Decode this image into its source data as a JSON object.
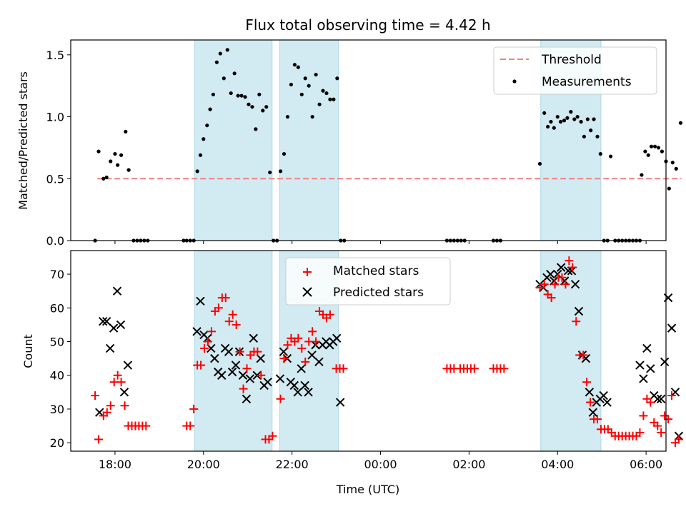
{
  "chart_data": {
    "title": "Flux total observing time = 4.42 h",
    "xlabel": "Time (UTC)",
    "x_range_hours": [
      17.0,
      30.45
    ],
    "x_ticks": [
      {
        "h": 18,
        "label": "18:00"
      },
      {
        "h": 20,
        "label": "20:00"
      },
      {
        "h": 22,
        "label": "22:00"
      },
      {
        "h": 24,
        "label": "00:00"
      },
      {
        "h": 26,
        "label": "02:00"
      },
      {
        "h": 28,
        "label": "04:00"
      },
      {
        "h": 30,
        "label": "06:00"
      }
    ],
    "shaded_intervals_hours": [
      [
        19.8,
        21.55
      ],
      [
        21.72,
        23.05
      ],
      [
        27.62,
        28.98
      ]
    ],
    "shade_color": "#add8e6",
    "top": {
      "type": "scatter",
      "ylabel": "Matched/Predicted stars",
      "ylim": [
        0,
        1.62
      ],
      "y_ticks": [
        0.0,
        0.5,
        1.0,
        1.5
      ],
      "threshold": 0.5,
      "threshold_range_hours": [
        17.6,
        30.8
      ],
      "threshold_color": "#f08080",
      "point_color": "#000000",
      "legend": [
        "Threshold",
        "Measurements"
      ],
      "measurements": [
        [
          17.55,
          0.0
        ],
        [
          17.63,
          0.72
        ],
        [
          17.74,
          0.5
        ],
        [
          17.81,
          0.51
        ],
        [
          17.9,
          0.64
        ],
        [
          18.0,
          0.7
        ],
        [
          18.06,
          0.61
        ],
        [
          18.14,
          0.69
        ],
        [
          18.24,
          0.88
        ],
        [
          18.31,
          0.57
        ],
        [
          18.42,
          0.0
        ],
        [
          18.5,
          0.0
        ],
        [
          18.58,
          0.0
        ],
        [
          18.66,
          0.0
        ],
        [
          18.74,
          0.0
        ],
        [
          19.55,
          0.0
        ],
        [
          19.62,
          0.0
        ],
        [
          19.7,
          0.0
        ],
        [
          19.78,
          0.0
        ],
        [
          19.86,
          0.56
        ],
        [
          19.93,
          0.69
        ],
        [
          20.0,
          0.82
        ],
        [
          20.08,
          0.93
        ],
        [
          20.15,
          1.06
        ],
        [
          20.22,
          1.18
        ],
        [
          20.3,
          1.44
        ],
        [
          20.38,
          1.51
        ],
        [
          20.46,
          1.31
        ],
        [
          20.54,
          1.54
        ],
        [
          20.62,
          1.19
        ],
        [
          20.7,
          1.35
        ],
        [
          20.78,
          1.17
        ],
        [
          20.86,
          1.17
        ],
        [
          20.94,
          1.16
        ],
        [
          21.02,
          1.1
        ],
        [
          21.1,
          1.08
        ],
        [
          21.18,
          0.9
        ],
        [
          21.26,
          1.18
        ],
        [
          21.34,
          1.05
        ],
        [
          21.42,
          1.08
        ],
        [
          21.5,
          0.55
        ],
        [
          21.58,
          0.0
        ],
        [
          21.66,
          0.0
        ],
        [
          21.74,
          0.56
        ],
        [
          21.82,
          0.7
        ],
        [
          21.9,
          1.0
        ],
        [
          21.98,
          1.26
        ],
        [
          22.06,
          1.42
        ],
        [
          22.14,
          1.4
        ],
        [
          22.22,
          1.18
        ],
        [
          22.3,
          1.31
        ],
        [
          22.38,
          1.25
        ],
        [
          22.46,
          1.0
        ],
        [
          22.54,
          1.34
        ],
        [
          22.62,
          1.1
        ],
        [
          22.7,
          1.21
        ],
        [
          22.78,
          1.19
        ],
        [
          22.86,
          1.14
        ],
        [
          22.94,
          1.14
        ],
        [
          23.02,
          1.31
        ],
        [
          23.1,
          0.0
        ],
        [
          23.18,
          0.0
        ],
        [
          25.5,
          0.0
        ],
        [
          25.58,
          0.0
        ],
        [
          25.66,
          0.0
        ],
        [
          25.74,
          0.0
        ],
        [
          25.82,
          0.0
        ],
        [
          25.9,
          0.0
        ],
        [
          26.55,
          0.0
        ],
        [
          26.63,
          0.0
        ],
        [
          26.71,
          0.0
        ],
        [
          27.6,
          0.62
        ],
        [
          27.7,
          1.03
        ],
        [
          27.78,
          0.92
        ],
        [
          27.85,
          0.96
        ],
        [
          27.92,
          0.91
        ],
        [
          28.0,
          1.0
        ],
        [
          28.07,
          0.96
        ],
        [
          28.15,
          0.97
        ],
        [
          28.22,
          0.99
        ],
        [
          28.3,
          1.04
        ],
        [
          28.38,
          0.98
        ],
        [
          28.45,
          1.0
        ],
        [
          28.53,
          0.96
        ],
        [
          28.6,
          0.84
        ],
        [
          28.68,
          0.98
        ],
        [
          28.75,
          0.89
        ],
        [
          28.82,
          0.98
        ],
        [
          28.9,
          0.84
        ],
        [
          28.97,
          0.7
        ],
        [
          29.05,
          0.0
        ],
        [
          29.13,
          0.0
        ],
        [
          29.2,
          0.68
        ],
        [
          29.3,
          0.0
        ],
        [
          29.38,
          0.0
        ],
        [
          29.46,
          0.0
        ],
        [
          29.54,
          0.0
        ],
        [
          29.62,
          0.0
        ],
        [
          29.7,
          0.0
        ],
        [
          29.78,
          0.0
        ],
        [
          29.86,
          0.0
        ],
        [
          29.9,
          0.53
        ],
        [
          29.98,
          0.72
        ],
        [
          30.05,
          0.69
        ],
        [
          30.12,
          0.76
        ],
        [
          30.2,
          0.76
        ],
        [
          30.28,
          0.75
        ],
        [
          30.36,
          0.72
        ],
        [
          30.45,
          0.64
        ],
        [
          30.52,
          0.42
        ],
        [
          30.6,
          0.63
        ],
        [
          30.68,
          0.58
        ],
        [
          30.78,
          0.95
        ]
      ]
    },
    "bottom": {
      "type": "scatter",
      "ylabel": "Count",
      "ylim": [
        17.5,
        77
      ],
      "y_ticks": [
        20,
        30,
        40,
        50,
        60,
        70
      ],
      "legend": [
        "Matched stars",
        "Predicted stars"
      ],
      "matched_color": "#ff0000",
      "predicted_color": "#000000",
      "matched": [
        [
          17.55,
          34
        ],
        [
          17.63,
          21
        ],
        [
          17.74,
          28
        ],
        [
          17.82,
          29
        ],
        [
          17.9,
          31
        ],
        [
          17.98,
          38
        ],
        [
          18.06,
          40
        ],
        [
          18.14,
          38
        ],
        [
          18.22,
          31
        ],
        [
          18.3,
          25
        ],
        [
          18.38,
          25
        ],
        [
          18.46,
          25
        ],
        [
          18.54,
          25
        ],
        [
          18.62,
          25
        ],
        [
          18.7,
          25
        ],
        [
          19.62,
          25
        ],
        [
          19.7,
          25
        ],
        [
          19.78,
          30
        ],
        [
          19.86,
          43
        ],
        [
          19.94,
          43
        ],
        [
          20.02,
          48
        ],
        [
          20.1,
          50
        ],
        [
          20.18,
          53
        ],
        [
          20.26,
          59
        ],
        [
          20.34,
          60
        ],
        [
          20.42,
          63
        ],
        [
          20.5,
          63
        ],
        [
          20.58,
          56
        ],
        [
          20.66,
          58
        ],
        [
          20.74,
          55
        ],
        [
          20.82,
          47
        ],
        [
          20.9,
          36
        ],
        [
          20.98,
          42
        ],
        [
          21.06,
          46
        ],
        [
          21.14,
          47
        ],
        [
          21.22,
          47
        ],
        [
          21.3,
          40
        ],
        [
          21.4,
          21
        ],
        [
          21.48,
          21
        ],
        [
          21.56,
          22
        ],
        [
          21.74,
          33
        ],
        [
          21.82,
          45
        ],
        [
          21.9,
          49
        ],
        [
          21.98,
          51
        ],
        [
          22.06,
          50
        ],
        [
          22.14,
          51
        ],
        [
          22.22,
          48
        ],
        [
          22.3,
          44
        ],
        [
          22.38,
          50
        ],
        [
          22.46,
          53
        ],
        [
          22.54,
          50
        ],
        [
          22.62,
          59
        ],
        [
          22.7,
          58
        ],
        [
          22.78,
          57
        ],
        [
          22.86,
          58
        ],
        [
          23.0,
          42
        ],
        [
          23.08,
          42
        ],
        [
          23.16,
          42
        ],
        [
          25.5,
          42
        ],
        [
          25.58,
          42
        ],
        [
          25.66,
          42
        ],
        [
          25.8,
          42
        ],
        [
          25.88,
          42
        ],
        [
          25.96,
          42
        ],
        [
          26.04,
          42
        ],
        [
          26.12,
          42
        ],
        [
          26.55,
          42
        ],
        [
          26.63,
          42
        ],
        [
          26.71,
          42
        ],
        [
          26.79,
          42
        ],
        [
          27.6,
          66
        ],
        [
          27.7,
          67
        ],
        [
          27.78,
          64
        ],
        [
          27.86,
          63
        ],
        [
          27.94,
          67
        ],
        [
          28.02,
          69
        ],
        [
          28.1,
          69
        ],
        [
          28.18,
          67
        ],
        [
          28.26,
          74
        ],
        [
          28.34,
          72
        ],
        [
          28.42,
          56
        ],
        [
          28.5,
          46
        ],
        [
          28.58,
          46
        ],
        [
          28.66,
          38
        ],
        [
          28.74,
          32
        ],
        [
          28.82,
          27
        ],
        [
          28.9,
          27
        ],
        [
          28.98,
          24
        ],
        [
          29.06,
          24
        ],
        [
          29.14,
          24
        ],
        [
          29.22,
          23
        ],
        [
          29.3,
          22
        ],
        [
          29.38,
          22
        ],
        [
          29.46,
          22
        ],
        [
          29.54,
          22
        ],
        [
          29.62,
          22
        ],
        [
          29.7,
          22
        ],
        [
          29.78,
          22
        ],
        [
          29.86,
          23
        ],
        [
          29.94,
          28
        ],
        [
          30.02,
          33
        ],
        [
          30.1,
          32
        ],
        [
          30.18,
          26
        ],
        [
          30.26,
          25
        ],
        [
          30.34,
          23
        ],
        [
          30.42,
          28
        ],
        [
          30.5,
          27
        ],
        [
          30.58,
          34
        ],
        [
          30.66,
          20
        ],
        [
          30.74,
          21
        ]
      ],
      "predicted": [
        [
          17.65,
          29
        ],
        [
          17.73,
          56
        ],
        [
          17.81,
          56
        ],
        [
          17.89,
          48
        ],
        [
          17.97,
          54
        ],
        [
          18.05,
          65
        ],
        [
          18.13,
          55
        ],
        [
          18.21,
          35
        ],
        [
          18.29,
          43
        ],
        [
          19.85,
          53
        ],
        [
          19.93,
          62
        ],
        [
          20.01,
          52
        ],
        [
          20.09,
          51
        ],
        [
          20.17,
          48
        ],
        [
          20.25,
          45
        ],
        [
          20.33,
          41
        ],
        [
          20.41,
          40
        ],
        [
          20.49,
          48
        ],
        [
          20.57,
          47
        ],
        [
          20.65,
          41
        ],
        [
          20.73,
          43
        ],
        [
          20.81,
          47
        ],
        [
          20.89,
          40
        ],
        [
          20.97,
          33
        ],
        [
          21.05,
          39
        ],
        [
          21.13,
          51
        ],
        [
          21.21,
          40
        ],
        [
          21.29,
          45
        ],
        [
          21.37,
          37
        ],
        [
          21.45,
          38
        ],
        [
          21.73,
          39
        ],
        [
          21.81,
          47
        ],
        [
          21.89,
          45
        ],
        [
          21.97,
          38
        ],
        [
          22.05,
          37
        ],
        [
          22.13,
          35
        ],
        [
          22.21,
          42
        ],
        [
          22.29,
          37
        ],
        [
          22.37,
          35
        ],
        [
          22.45,
          46
        ],
        [
          22.53,
          49
        ],
        [
          22.61,
          44
        ],
        [
          22.69,
          49
        ],
        [
          22.77,
          50
        ],
        [
          22.85,
          49
        ],
        [
          22.93,
          50
        ],
        [
          23.01,
          51
        ],
        [
          23.09,
          32
        ],
        [
          27.6,
          67
        ],
        [
          27.68,
          66
        ],
        [
          27.76,
          69
        ],
        [
          27.84,
          70
        ],
        [
          27.92,
          68
        ],
        [
          28.0,
          70
        ],
        [
          28.08,
          72
        ],
        [
          28.16,
          68
        ],
        [
          28.24,
          71
        ],
        [
          28.32,
          71
        ],
        [
          28.4,
          67
        ],
        [
          28.48,
          59
        ],
        [
          28.56,
          46
        ],
        [
          28.64,
          45
        ],
        [
          28.72,
          35
        ],
        [
          28.8,
          29
        ],
        [
          28.88,
          32
        ],
        [
          28.96,
          33
        ],
        [
          29.04,
          34
        ],
        [
          29.12,
          32
        ],
        [
          29.86,
          43
        ],
        [
          29.94,
          39
        ],
        [
          30.02,
          48
        ],
        [
          30.1,
          42
        ],
        [
          30.18,
          34
        ],
        [
          30.26,
          33
        ],
        [
          30.34,
          33
        ],
        [
          30.42,
          44
        ],
        [
          30.5,
          63
        ],
        [
          30.58,
          54
        ],
        [
          30.66,
          35
        ],
        [
          30.74,
          22
        ]
      ]
    }
  }
}
